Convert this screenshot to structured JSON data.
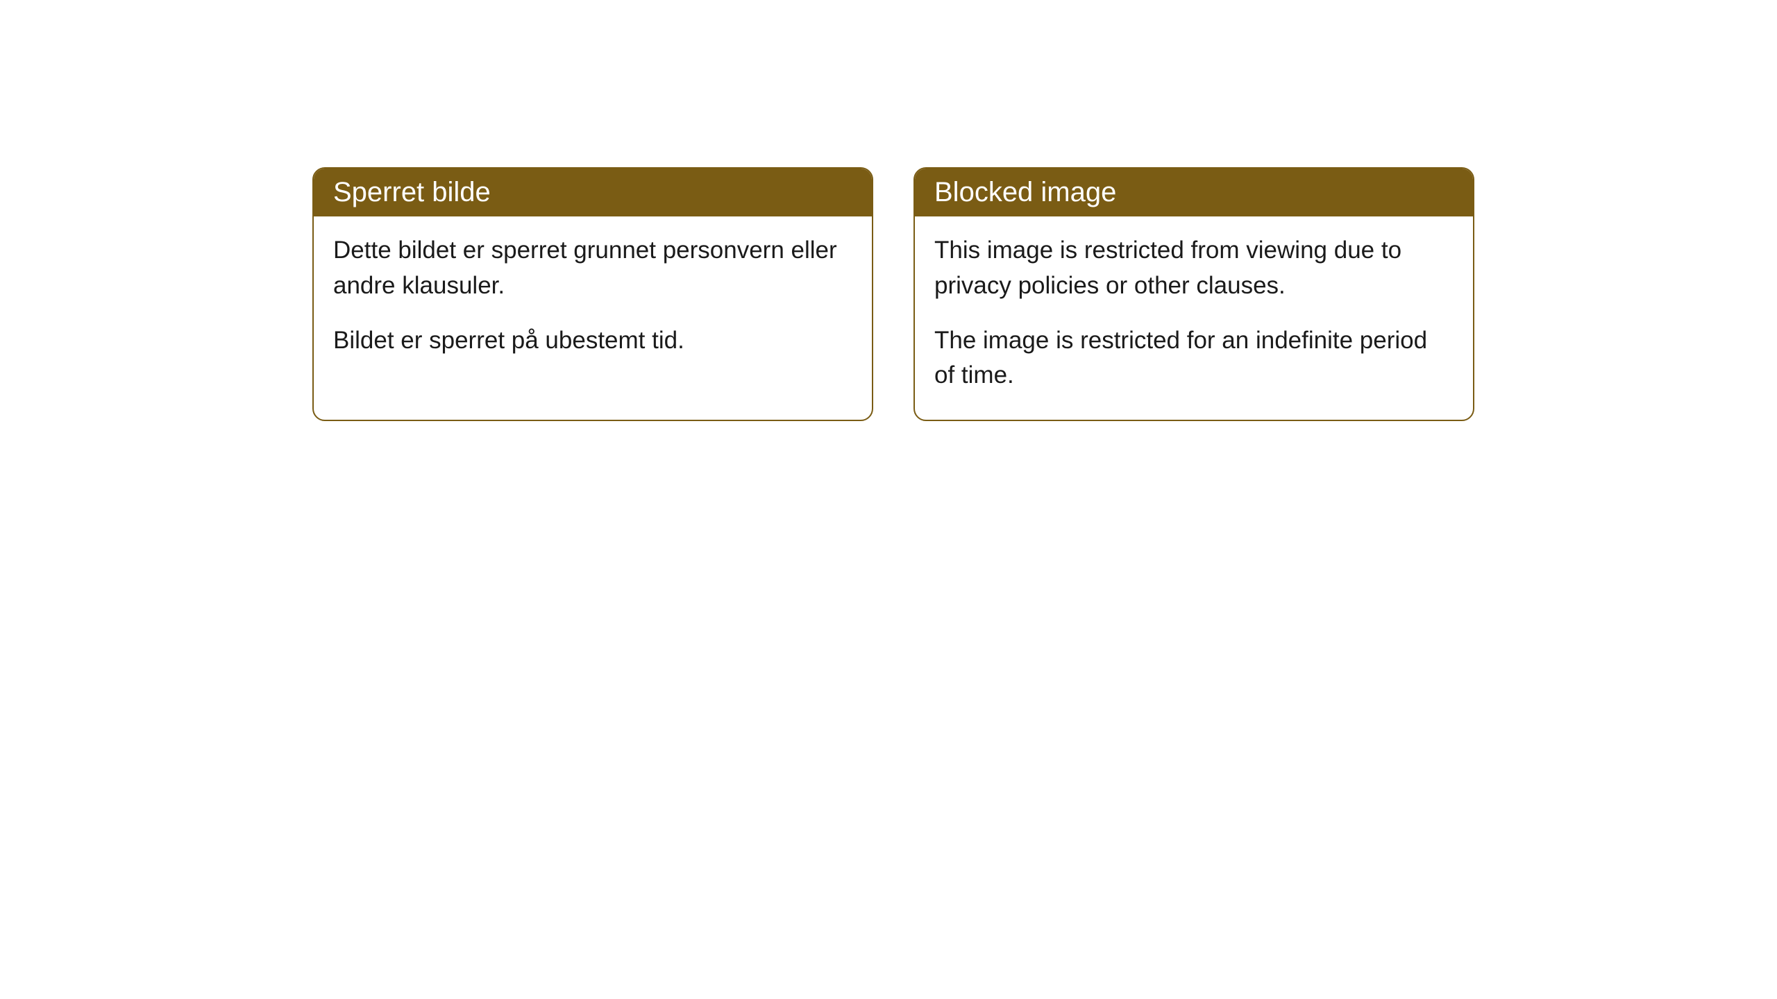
{
  "cards": [
    {
      "title": "Sperret bilde",
      "paragraph1": "Dette bildet er sperret grunnet personvern eller andre klausuler.",
      "paragraph2": "Bildet er sperret på ubestemt tid."
    },
    {
      "title": "Blocked image",
      "paragraph1": "This image is restricted from viewing due to privacy policies or other clauses.",
      "paragraph2": "The image is restricted for an indefinite period of time."
    }
  ],
  "style": {
    "header_background": "#7a5c14",
    "header_text_color": "#ffffff",
    "border_color": "#7a5c14",
    "body_background": "#ffffff",
    "body_text_color": "#1a1a1a",
    "border_radius": 18,
    "title_fontsize": 40,
    "body_fontsize": 35
  }
}
